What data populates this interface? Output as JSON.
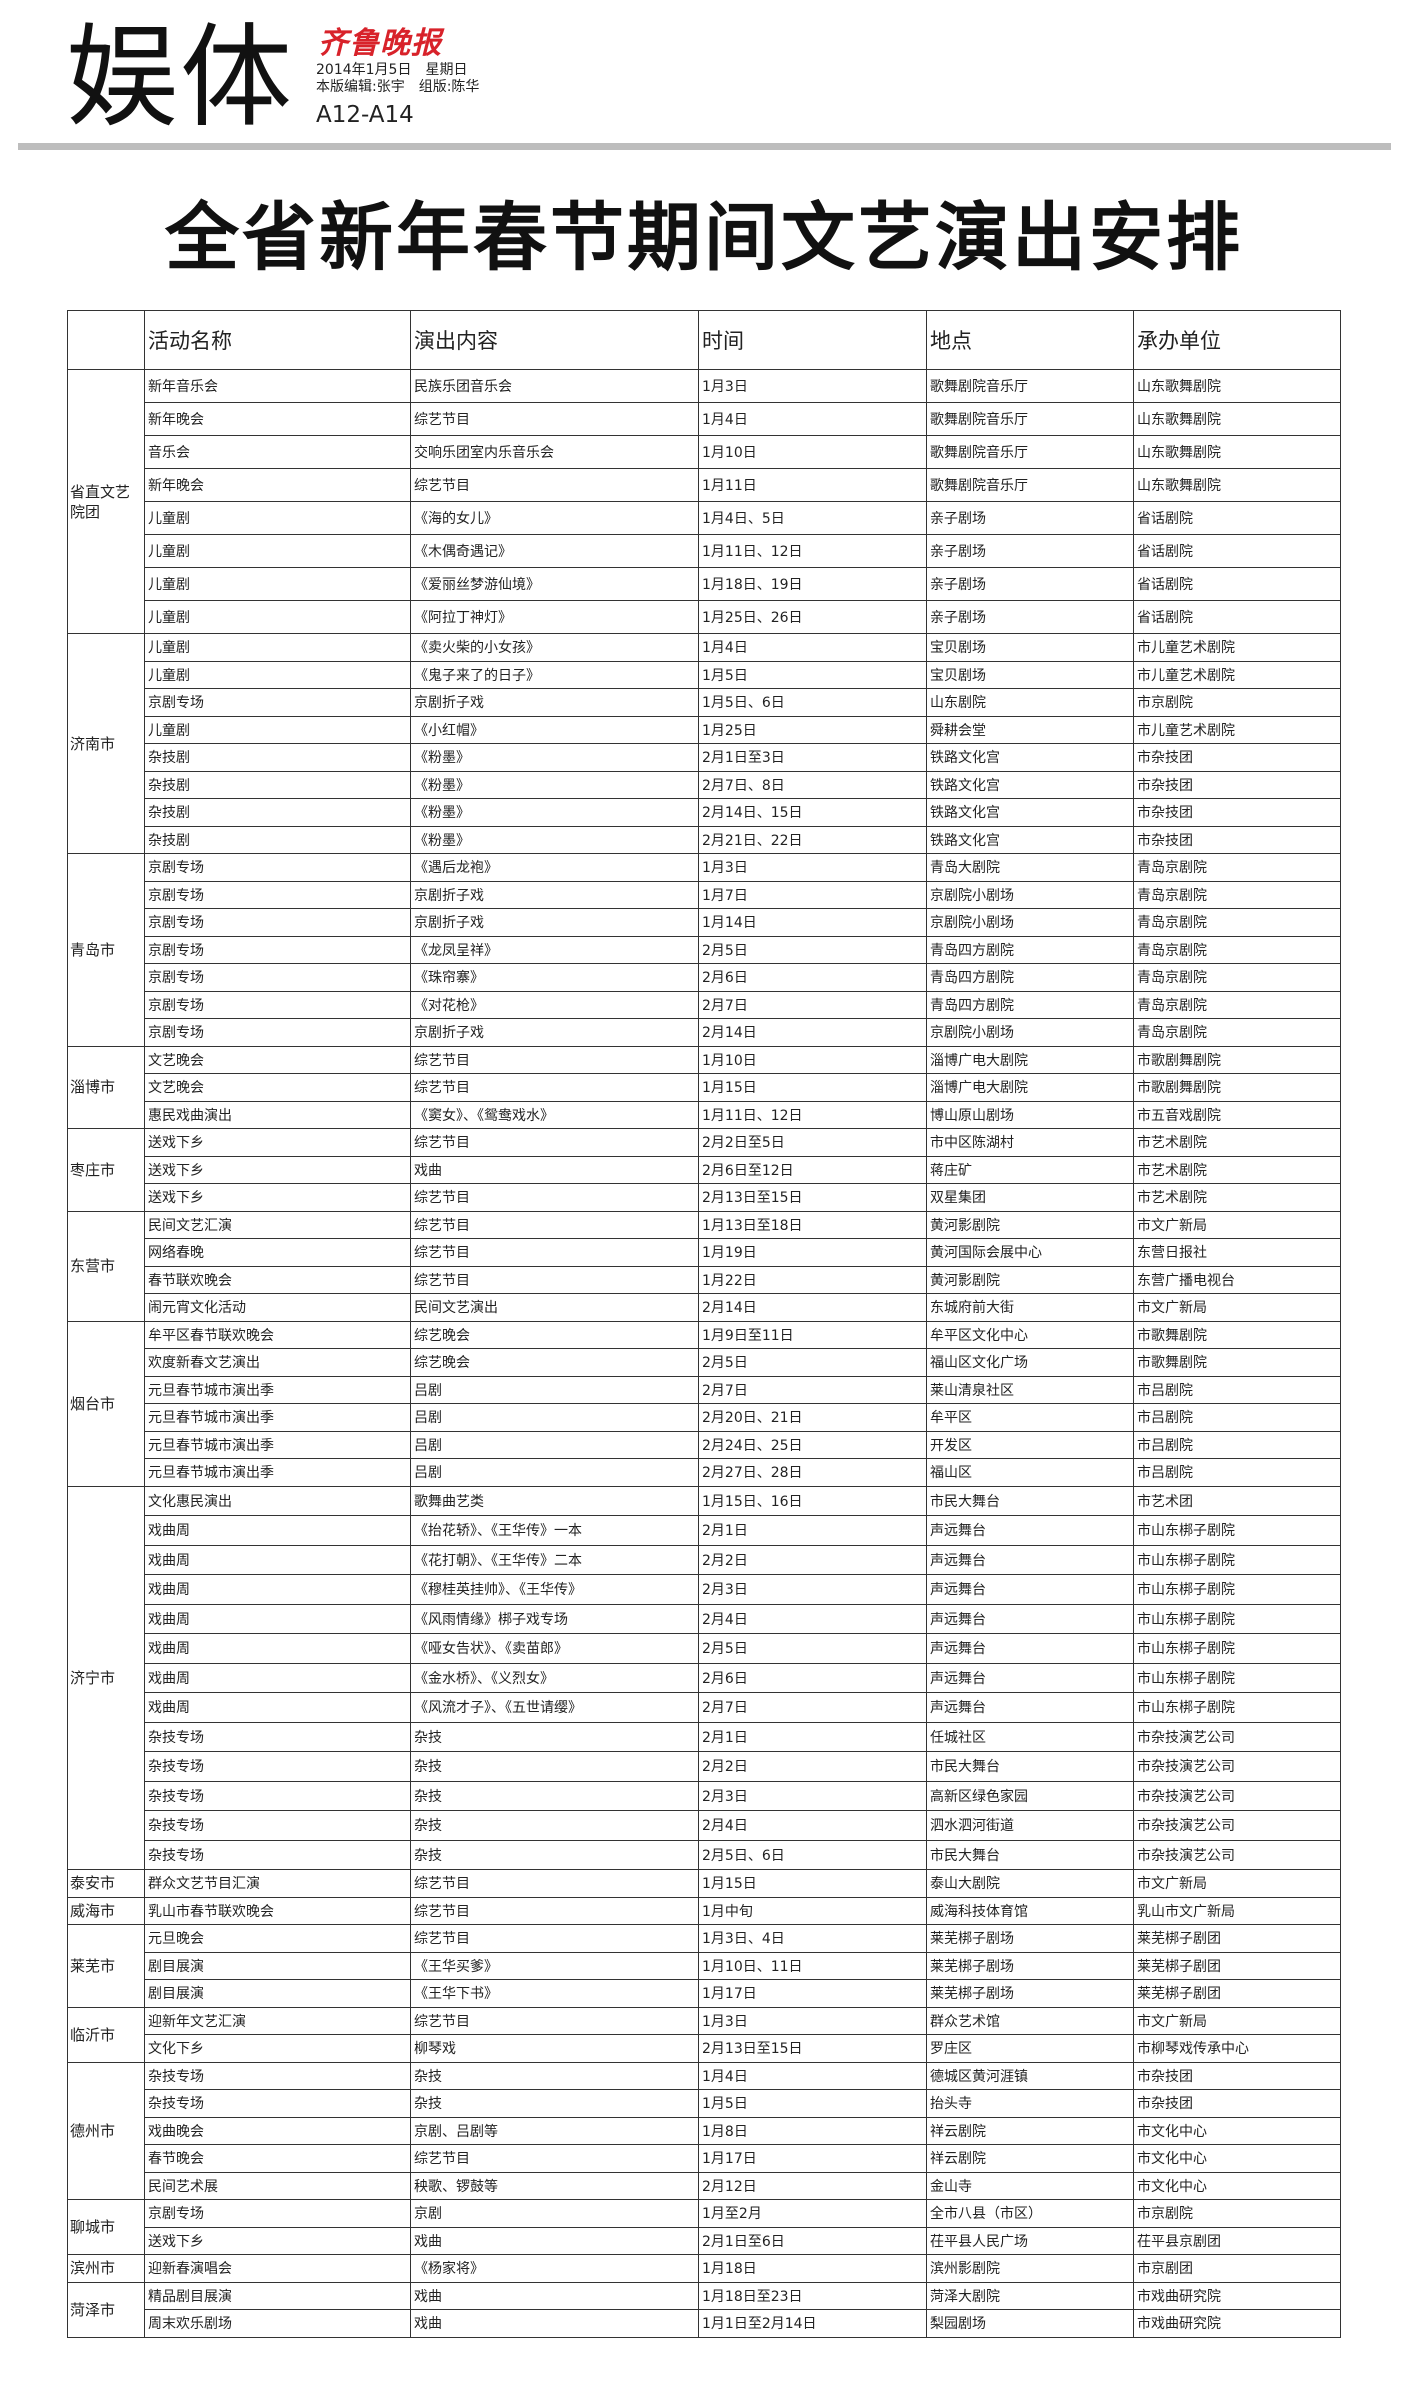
{
  "masthead": {
    "section": "娱体",
    "logo": "齐鲁晚报",
    "date_line": "2014年1月5日　星期日",
    "editor_line": "本版编辑:张宇　组版:陈华",
    "pages": "A12-A14"
  },
  "title": "全省新年春节期间文艺演出安排",
  "table": {
    "headers": [
      "",
      "活动名称",
      "演出内容",
      "时间",
      "地点",
      "承办单位"
    ],
    "sections": [
      {
        "region": "省直文艺院团",
        "rows": [
          [
            "新年音乐会",
            "民族乐团音乐会",
            "1月3日",
            "歌舞剧院音乐厅",
            "山东歌舞剧院"
          ],
          [
            "新年晚会",
            "综艺节目",
            "1月4日",
            "歌舞剧院音乐厅",
            "山东歌舞剧院"
          ],
          [
            "音乐会",
            "交响乐团室内乐音乐会",
            "1月10日",
            "歌舞剧院音乐厅",
            "山东歌舞剧院"
          ],
          [
            "新年晚会",
            "综艺节目",
            "1月11日",
            "歌舞剧院音乐厅",
            "山东歌舞剧院"
          ],
          [
            "儿童剧",
            "《海的女儿》",
            "1月4日、5日",
            "亲子剧场",
            "省话剧院"
          ],
          [
            "儿童剧",
            "《木偶奇遇记》",
            "1月11日、12日",
            "亲子剧场",
            "省话剧院"
          ],
          [
            "儿童剧",
            "《爱丽丝梦游仙境》",
            "1月18日、19日",
            "亲子剧场",
            "省话剧院"
          ],
          [
            "儿童剧",
            "《阿拉丁神灯》",
            "1月25日、26日",
            "亲子剧场",
            "省话剧院"
          ]
        ]
      },
      {
        "region": "济南市",
        "rows": [
          [
            "儿童剧",
            "《卖火柴的小女孩》",
            "1月4日",
            "宝贝剧场",
            "市儿童艺术剧院"
          ],
          [
            "儿童剧",
            "《鬼子来了的日子》",
            "1月5日",
            "宝贝剧场",
            "市儿童艺术剧院"
          ],
          [
            "京剧专场",
            "京剧折子戏",
            "1月5日、6日",
            "山东剧院",
            "市京剧院"
          ],
          [
            "儿童剧",
            "《小红帽》",
            "1月25日",
            "舜耕会堂",
            "市儿童艺术剧院"
          ],
          [
            "杂技剧",
            "《粉墨》",
            "2月1日至3日",
            "铁路文化宫",
            "市杂技团"
          ],
          [
            "杂技剧",
            "《粉墨》",
            "2月7日、8日",
            "铁路文化宫",
            "市杂技团"
          ],
          [
            "杂技剧",
            "《粉墨》",
            "2月14日、15日",
            "铁路文化宫",
            "市杂技团"
          ],
          [
            "杂技剧",
            "《粉墨》",
            "2月21日、22日",
            "铁路文化宫",
            "市杂技团"
          ]
        ]
      },
      {
        "region": "青岛市",
        "rows": [
          [
            "京剧专场",
            "《遇后龙袍》",
            "1月3日",
            "青岛大剧院",
            "青岛京剧院"
          ],
          [
            "京剧专场",
            "京剧折子戏",
            "1月7日",
            "京剧院小剧场",
            "青岛京剧院"
          ],
          [
            "京剧专场",
            "京剧折子戏",
            "1月14日",
            "京剧院小剧场",
            "青岛京剧院"
          ],
          [
            "京剧专场",
            "《龙凤呈祥》",
            "2月5日",
            "青岛四方剧院",
            "青岛京剧院"
          ],
          [
            "京剧专场",
            "《珠帘寨》",
            "2月6日",
            "青岛四方剧院",
            "青岛京剧院"
          ],
          [
            "京剧专场",
            "《对花枪》",
            "2月7日",
            "青岛四方剧院",
            "青岛京剧院"
          ],
          [
            "京剧专场",
            "京剧折子戏",
            "2月14日",
            "京剧院小剧场",
            "青岛京剧院"
          ]
        ]
      },
      {
        "region": "淄博市",
        "rows": [
          [
            "文艺晚会",
            "综艺节目",
            "1月10日",
            "淄博广电大剧院",
            "市歌剧舞剧院"
          ],
          [
            "文艺晚会",
            "综艺节目",
            "1月15日",
            "淄博广电大剧院",
            "市歌剧舞剧院"
          ],
          [
            "惠民戏曲演出",
            "《窦女》、《鸳鸯戏水》",
            "1月11日、12日",
            "博山原山剧场",
            "市五音戏剧院"
          ]
        ]
      },
      {
        "region": "枣庄市",
        "rows": [
          [
            "送戏下乡",
            "综艺节目",
            "2月2日至5日",
            "市中区陈湖村",
            "市艺术剧院"
          ],
          [
            "送戏下乡",
            "戏曲",
            "2月6日至12日",
            "蒋庄矿",
            "市艺术剧院"
          ],
          [
            "送戏下乡",
            "综艺节目",
            "2月13日至15日",
            "双星集团",
            "市艺术剧院"
          ]
        ]
      },
      {
        "region": "东营市",
        "rows": [
          [
            "民间文艺汇演",
            "综艺节目",
            "1月13日至18日",
            "黄河影剧院",
            "市文广新局"
          ],
          [
            "网络春晚",
            "综艺节目",
            "1月19日",
            "黄河国际会展中心",
            "东营日报社"
          ],
          [
            "春节联欢晚会",
            "综艺节目",
            "1月22日",
            "黄河影剧院",
            "东营广播电视台"
          ],
          [
            "闹元宵文化活动",
            "民间文艺演出",
            "2月14日",
            "东城府前大街",
            "市文广新局"
          ]
        ]
      },
      {
        "region": "烟台市",
        "rows": [
          [
            "牟平区春节联欢晚会",
            "综艺晚会",
            "1月9日至11日",
            "牟平区文化中心",
            "市歌舞剧院"
          ],
          [
            "欢度新春文艺演出",
            "综艺晚会",
            "2月5日",
            "福山区文化广场",
            "市歌舞剧院"
          ],
          [
            "元旦春节城市演出季",
            "吕剧",
            "2月7日",
            "莱山清泉社区",
            "市吕剧院"
          ],
          [
            "元旦春节城市演出季",
            "吕剧",
            "2月20日、21日",
            "牟平区",
            "市吕剧院"
          ],
          [
            "元旦春节城市演出季",
            "吕剧",
            "2月24日、25日",
            "开发区",
            "市吕剧院"
          ],
          [
            "元旦春节城市演出季",
            "吕剧",
            "2月27日、28日",
            "福山区",
            "市吕剧院"
          ]
        ]
      },
      {
        "region": "济宁市",
        "rows": [
          [
            "文化惠民演出",
            "歌舞曲艺类",
            "1月15日、16日",
            "市民大舞台",
            "市艺术团"
          ],
          [
            "戏曲周",
            "《抬花轿》、《王华传》一本",
            "2月1日",
            "声远舞台",
            "市山东梆子剧院"
          ],
          [
            "戏曲周",
            "《花打朝》、《王华传》二本",
            "2月2日",
            "声远舞台",
            "市山东梆子剧院"
          ],
          [
            "戏曲周",
            "《穆桂英挂帅》、《王华传》",
            "2月3日",
            "声远舞台",
            "市山东梆子剧院"
          ],
          [
            "戏曲周",
            "《风雨情缘》梆子戏专场",
            "2月4日",
            "声远舞台",
            "市山东梆子剧院"
          ],
          [
            "戏曲周",
            "《哑女告状》、《卖苗郎》",
            "2月5日",
            "声远舞台",
            "市山东梆子剧院"
          ],
          [
            "戏曲周",
            "《金水桥》、《义烈女》",
            "2月6日",
            "声远舞台",
            "市山东梆子剧院"
          ],
          [
            "戏曲周",
            "《风流才子》、《五世请缨》",
            "2月7日",
            "声远舞台",
            "市山东梆子剧院"
          ],
          [
            "杂技专场",
            "杂技",
            "2月1日",
            "任城社区",
            "市杂技演艺公司"
          ],
          [
            "杂技专场",
            "杂技",
            "2月2日",
            "市民大舞台",
            "市杂技演艺公司"
          ],
          [
            "杂技专场",
            "杂技",
            "2月3日",
            "高新区绿色家园",
            "市杂技演艺公司"
          ],
          [
            "杂技专场",
            "杂技",
            "2月4日",
            "泗水泗河街道",
            "市杂技演艺公司"
          ],
          [
            "杂技专场",
            "杂技",
            "2月5日、6日",
            "市民大舞台",
            "市杂技演艺公司"
          ]
        ]
      },
      {
        "region": "泰安市",
        "rows": [
          [
            "群众文艺节目汇演",
            "综艺节目",
            "1月15日",
            "泰山大剧院",
            "市文广新局"
          ]
        ]
      },
      {
        "region": "威海市",
        "rows": [
          [
            "乳山市春节联欢晚会",
            "综艺节目",
            "1月中旬",
            "威海科技体育馆",
            "乳山市文广新局"
          ]
        ]
      },
      {
        "region": "莱芜市",
        "rows": [
          [
            "元旦晚会",
            "综艺节目",
            "1月3日、4日",
            "莱芜梆子剧场",
            "莱芜梆子剧团"
          ],
          [
            "剧目展演",
            "《王华买爹》",
            "1月10日、11日",
            "莱芜梆子剧场",
            "莱芜梆子剧团"
          ],
          [
            "剧目展演",
            "《王华下书》",
            "1月17日",
            "莱芜梆子剧场",
            "莱芜梆子剧团"
          ]
        ]
      },
      {
        "region": "临沂市",
        "rows": [
          [
            "迎新年文艺汇演",
            "综艺节目",
            "1月3日",
            "群众艺术馆",
            "市文广新局"
          ],
          [
            "文化下乡",
            "柳琴戏",
            "2月13日至15日",
            "罗庄区",
            "市柳琴戏传承中心"
          ]
        ]
      },
      {
        "region": "德州市",
        "rows": [
          [
            "杂技专场",
            "杂技",
            "1月4日",
            "德城区黄河涯镇",
            "市杂技团"
          ],
          [
            "杂技专场",
            "杂技",
            "1月5日",
            "抬头寺",
            "市杂技团"
          ],
          [
            "戏曲晚会",
            "京剧、吕剧等",
            "1月8日",
            "祥云剧院",
            "市文化中心"
          ],
          [
            "春节晚会",
            "综艺节目",
            "1月17日",
            "祥云剧院",
            "市文化中心"
          ],
          [
            "民间艺术展",
            "秧歌、锣鼓等",
            "2月12日",
            "金山寺",
            "市文化中心"
          ]
        ]
      },
      {
        "region": "聊城市",
        "rows": [
          [
            "京剧专场",
            "京剧",
            "1月至2月",
            "全市八县（市区）",
            "市京剧院"
          ],
          [
            "送戏下乡",
            "戏曲",
            "2月1日至6日",
            "茌平县人民广场",
            "茌平县京剧团"
          ]
        ]
      },
      {
        "region": "滨州市",
        "rows": [
          [
            "迎新春演唱会",
            "《杨家将》",
            "1月18日",
            "滨州影剧院",
            "市京剧团"
          ]
        ]
      },
      {
        "region": "菏泽市",
        "rows": [
          [
            "精品剧目展演",
            "戏曲",
            "1月18日至23日",
            "菏泽大剧院",
            "市戏曲研究院"
          ],
          [
            "周末欢乐剧场",
            "戏曲",
            "1月1日至2月14日",
            "梨园剧场",
            "市戏曲研究院"
          ]
        ]
      }
    ]
  }
}
